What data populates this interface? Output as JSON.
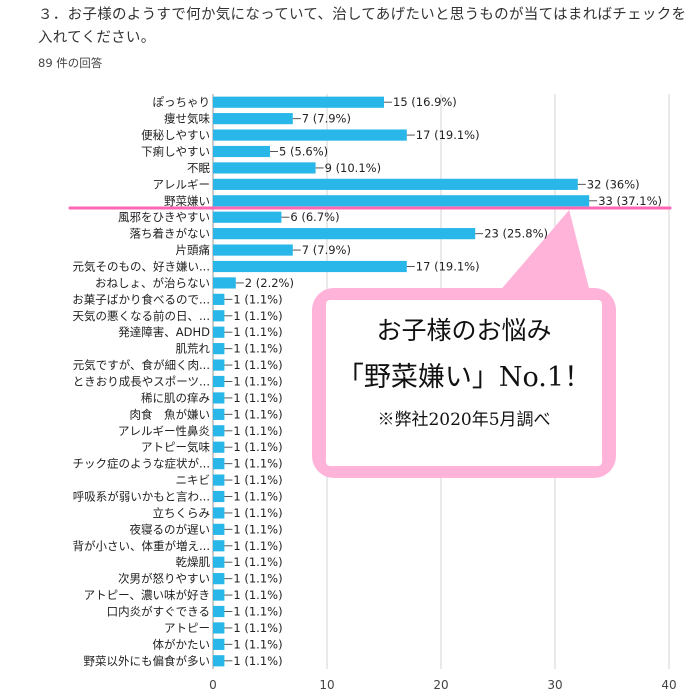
{
  "header": {
    "question": "３．お子様のようすで何か気になっていて、治してあげたいと思うものが当てはまればチェックを入れてください。",
    "response_count": "89 件の回答"
  },
  "callout": {
    "line1": "お子様のお悩み",
    "line2": "「野菜嫌い」No.1！",
    "line3": "※弊社2020年5月調べ"
  },
  "colors": {
    "bar": "#29b6e8",
    "highlight": "#ff66b3",
    "callout": "#ffb3d9"
  },
  "chart_data": {
    "type": "bar",
    "orientation": "horizontal",
    "xlim": [
      0,
      40
    ],
    "xticks": [
      0,
      10,
      20,
      30,
      40
    ],
    "grid": true,
    "highlight": "野菜嫌い",
    "categories": [
      "ぽっちゃり",
      "痩せ気味",
      "便秘しやすい",
      "下痢しやすい",
      "不眠",
      "アレルギー",
      "野菜嫌い",
      "風邪をひきやすい",
      "落ち着きがない",
      "片頭痛",
      "元気そのもの、好き嫌い...",
      "おねしょ、が治らない",
      "お菓子ばかり食べるので...",
      "天気の悪くなる前の日、...",
      "発達障害、ADHD",
      "肌荒れ",
      "元気ですが、食が細く肉...",
      "ときおり成長やスポーツ...",
      "稀に肌の痒み",
      "肉食　魚が嫌い",
      "アレルギー性鼻炎",
      "アトピー気味",
      "チック症のような症状が...",
      "ニキビ",
      "呼吸系が弱いかもと言わ...",
      "立ちくらみ",
      "夜寝るのが遅い",
      "背が小さい、体重が増え...",
      "乾燥肌",
      "次男が怒りやすい",
      "アトピー、濃い味が好き",
      "口内炎がすぐできる",
      "アトピー",
      "体がかたい",
      "野菜以外にも偏食が多い"
    ],
    "values": [
      15,
      7,
      17,
      5,
      9,
      32,
      33,
      6,
      23,
      7,
      17,
      2,
      1,
      1,
      1,
      1,
      1,
      1,
      1,
      1,
      1,
      1,
      1,
      1,
      1,
      1,
      1,
      1,
      1,
      1,
      1,
      1,
      1,
      1,
      1
    ],
    "data_labels": [
      "15 (16.9%)",
      "7 (7.9%)",
      "17 (19.1%)",
      "5 (5.6%)",
      "9 (10.1%)",
      "32 (36%)",
      "33 (37.1%)",
      "6 (6.7%)",
      "23 (25.8%)",
      "7 (7.9%)",
      "17 (19.1%)",
      "2 (2.2%)",
      "1 (1.1%)",
      "1 (1.1%)",
      "1 (1.1%)",
      "1 (1.1%)",
      "1 (1.1%)",
      "1 (1.1%)",
      "1 (1.1%)",
      "1 (1.1%)",
      "1 (1.1%)",
      "1 (1.1%)",
      "1 (1.1%)",
      "1 (1.1%)",
      "1 (1.1%)",
      "1 (1.1%)",
      "1 (1.1%)",
      "1 (1.1%)",
      "1 (1.1%)",
      "1 (1.1%)",
      "1 (1.1%)",
      "1 (1.1%)",
      "1 (1.1%)",
      "1 (1.1%)",
      "1 (1.1%)"
    ]
  }
}
